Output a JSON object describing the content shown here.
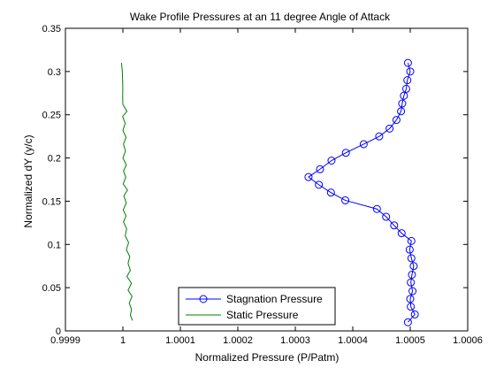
{
  "chart_data": {
    "type": "line",
    "title": "Wake Profile Pressures at an 11 degree Angle of Attack",
    "xlabel": "Normalized Pressure (P/Patm)",
    "ylabel": "Normalized dY (y/c)",
    "xlim": [
      0.9999,
      1.0006
    ],
    "ylim": [
      0,
      0.35
    ],
    "xticks": [
      0.9999,
      1.0,
      1.0001,
      1.0002,
      1.0003,
      1.0004,
      1.0005,
      1.0006
    ],
    "xtick_labels": [
      "0.9999",
      "1",
      "1.0001",
      "1.0002",
      "1.0003",
      "1.0004",
      "1.0005",
      "1.0006"
    ],
    "yticks": [
      0,
      0.05,
      0.1,
      0.15,
      0.2,
      0.25,
      0.3,
      0.35
    ],
    "ytick_labels": [
      "0",
      "0.05",
      "0.1",
      "0.15",
      "0.2",
      "0.25",
      "0.3",
      "0.35"
    ],
    "grid": false,
    "legend_position": "bottom-center",
    "series": [
      {
        "name": "Stagnation Pressure",
        "color": "#0000ff",
        "marker": "circle",
        "points": [
          [
            1.000496,
            0.31
          ],
          [
            1.0005,
            0.3
          ],
          [
            1.000495,
            0.29
          ],
          [
            1.000493,
            0.28
          ],
          [
            1.000489,
            0.272
          ],
          [
            1.000486,
            0.263
          ],
          [
            1.000484,
            0.254
          ],
          [
            1.000476,
            0.244
          ],
          [
            1.000464,
            0.234
          ],
          [
            1.000446,
            0.225
          ],
          [
            1.000419,
            0.216
          ],
          [
            1.000388,
            0.206
          ],
          [
            1.000363,
            0.197
          ],
          [
            1.000343,
            0.187
          ],
          [
            1.000323,
            0.178
          ],
          [
            1.000341,
            0.169
          ],
          [
            1.000362,
            0.16
          ],
          [
            1.000387,
            0.151
          ],
          [
            1.000442,
            0.141
          ],
          [
            1.000458,
            0.132
          ],
          [
            1.000472,
            0.122
          ],
          [
            1.000485,
            0.113
          ],
          [
            1.000502,
            0.104
          ],
          [
            1.000499,
            0.094
          ],
          [
            1.000502,
            0.084
          ],
          [
            1.000506,
            0.075
          ],
          [
            1.000503,
            0.065
          ],
          [
            1.000501,
            0.056
          ],
          [
            1.000504,
            0.046
          ],
          [
            1.0005,
            0.037
          ],
          [
            1.000501,
            0.028
          ],
          [
            1.000508,
            0.019
          ],
          [
            1.000496,
            0.01
          ]
        ]
      },
      {
        "name": "Static Pressure",
        "color": "#008000",
        "marker": "none",
        "points": [
          [
            0.9999975,
            0.31
          ],
          [
            0.999999,
            0.3
          ],
          [
            0.9999995,
            0.29
          ],
          [
            0.9999998,
            0.28
          ],
          [
            0.9999996,
            0.27
          ],
          [
            0.9999999,
            0.262
          ],
          [
            1.000007,
            0.254
          ],
          [
            0.9999995,
            0.248
          ],
          [
            1.000004,
            0.24
          ],
          [
            1.0,
            0.232
          ],
          [
            1.0000055,
            0.224
          ],
          [
            1.000001,
            0.216
          ],
          [
            1.0000045,
            0.208
          ],
          [
            1.0,
            0.2
          ],
          [
            1.000006,
            0.192
          ],
          [
            1.000001,
            0.185
          ],
          [
            1.000005,
            0.178
          ],
          [
            1.0000005,
            0.17
          ],
          [
            1.000008,
            0.163
          ],
          [
            1.0000015,
            0.156
          ],
          [
            1.000006,
            0.148
          ],
          [
            1.0000005,
            0.14
          ],
          [
            1.0000055,
            0.133
          ],
          [
            1.000001,
            0.126
          ],
          [
            1.0000065,
            0.118
          ],
          [
            1.000004,
            0.11
          ],
          [
            1.00001,
            0.102
          ],
          [
            1.000006,
            0.094
          ],
          [
            1.000012,
            0.086
          ],
          [
            1.000009,
            0.078
          ],
          [
            1.000013,
            0.07
          ],
          [
            1.000007,
            0.063
          ],
          [
            1.000015,
            0.055
          ],
          [
            1.000009,
            0.047
          ],
          [
            1.000016,
            0.04
          ],
          [
            1.000011,
            0.032
          ],
          [
            1.000015,
            0.025
          ],
          [
            1.000013,
            0.018
          ],
          [
            1.000017,
            0.012
          ]
        ]
      }
    ]
  }
}
